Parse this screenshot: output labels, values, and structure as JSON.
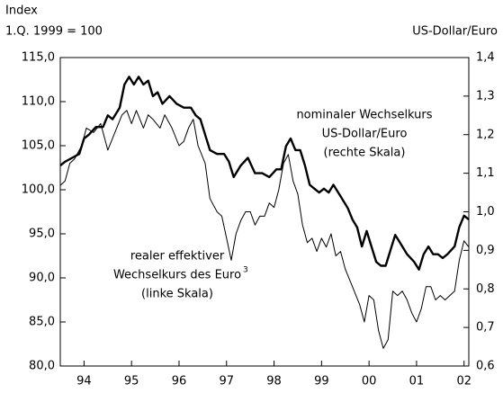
{
  "chart_data": {
    "type": "line",
    "ylabel": [
      "Index",
      "1.Q. 1999 = 100"
    ],
    "y2label": "US-Dollar/Euro",
    "xlim": [
      1994,
      2002.6
    ],
    "xticks": [
      {
        "value": 1994.5,
        "label": "94"
      },
      {
        "value": 1995.5,
        "label": "95"
      },
      {
        "value": 1996.5,
        "label": "96"
      },
      {
        "value": 1997.5,
        "label": "97"
      },
      {
        "value": 1998.5,
        "label": "98"
      },
      {
        "value": 1999.5,
        "label": "99"
      },
      {
        "value": 2000.5,
        "label": "00"
      },
      {
        "value": 2001.5,
        "label": "01"
      },
      {
        "value": 2002.5,
        "label": "02"
      }
    ],
    "ylim": [
      80,
      115
    ],
    "yticks": [
      {
        "value": 80,
        "label": "80,0"
      },
      {
        "value": 85,
        "label": "85,0"
      },
      {
        "value": 90,
        "label": "90,0"
      },
      {
        "value": 95,
        "label": "95,0"
      },
      {
        "value": 100,
        "label": "100,0"
      },
      {
        "value": 105,
        "label": "105,0"
      },
      {
        "value": 110,
        "label": "110,0"
      },
      {
        "value": 115,
        "label": "115,0"
      }
    ],
    "y2lim": [
      0.6,
      1.4
    ],
    "y2ticks": [
      {
        "value": 0.6,
        "label": "0,6"
      },
      {
        "value": 0.7,
        "label": "0,7"
      },
      {
        "value": 0.8,
        "label": "0,8"
      },
      {
        "value": 0.9,
        "label": "0,9"
      },
      {
        "value": 1.0,
        "label": "1,0"
      },
      {
        "value": 1.1,
        "label": "1,1"
      },
      {
        "value": 1.2,
        "label": "1,2"
      },
      {
        "value": 1.3,
        "label": "1,3"
      },
      {
        "value": 1.4,
        "label": "1,4"
      }
    ],
    "annotations": [
      {
        "lines": [
          "nominaler Wechselkurs",
          "US-Dollar/Euro",
          "(rechte Skala)"
        ]
      },
      {
        "lines": [
          "realer effektiver",
          "Wechselkurs des Euro",
          "(linke Skala)"
        ],
        "footnote": "3"
      }
    ],
    "series": [
      {
        "name": "nominaler Wechselkurs US-Dollar/Euro",
        "color": "#000",
        "width": 2.4,
        "axis": "y2",
        "x": [
          1994.0,
          1994.1,
          1994.25,
          1994.4,
          1994.5,
          1994.6,
          1994.75,
          1994.9,
          1995.0,
          1995.1,
          1995.25,
          1995.35,
          1995.45,
          1995.55,
          1995.65,
          1995.75,
          1995.85,
          1995.95,
          1996.05,
          1996.15,
          1996.3,
          1996.45,
          1996.6,
          1996.75,
          1996.85,
          1996.95,
          1997.05,
          1997.15,
          1997.3,
          1997.45,
          1997.55,
          1997.65,
          1997.8,
          1997.95,
          1998.1,
          1998.25,
          1998.4,
          1998.55,
          1998.65,
          1998.75,
          1998.85,
          1998.95,
          1999.05,
          1999.15,
          1999.25,
          1999.35,
          1999.45,
          1999.55,
          1999.65,
          1999.75,
          1999.9,
          2000.05,
          2000.15,
          2000.25,
          2000.35,
          2000.45,
          2000.55,
          2000.65,
          2000.75,
          2000.85,
          2000.95,
          2001.05,
          2001.15,
          2001.3,
          2001.45,
          2001.55,
          2001.65,
          2001.75,
          2001.85,
          2001.95,
          2002.05,
          2002.15,
          2002.3,
          2002.4,
          2002.5,
          2002.6
        ],
        "values": [
          1.12,
          1.13,
          1.14,
          1.15,
          1.19,
          1.2,
          1.22,
          1.22,
          1.25,
          1.24,
          1.27,
          1.33,
          1.35,
          1.33,
          1.35,
          1.33,
          1.34,
          1.3,
          1.31,
          1.28,
          1.3,
          1.28,
          1.27,
          1.27,
          1.25,
          1.24,
          1.2,
          1.16,
          1.15,
          1.15,
          1.13,
          1.09,
          1.12,
          1.14,
          1.1,
          1.1,
          1.09,
          1.11,
          1.11,
          1.17,
          1.19,
          1.16,
          1.16,
          1.12,
          1.07,
          1.06,
          1.05,
          1.06,
          1.05,
          1.07,
          1.04,
          1.01,
          0.98,
          0.96,
          0.91,
          0.95,
          0.91,
          0.87,
          0.86,
          0.86,
          0.9,
          0.94,
          0.92,
          0.89,
          0.87,
          0.85,
          0.89,
          0.91,
          0.89,
          0.89,
          0.88,
          0.89,
          0.91,
          0.96,
          0.99,
          0.98
        ]
      },
      {
        "name": "realer effektiver Wechselkurs des Euro",
        "color": "#000",
        "width": 1,
        "axis": "y",
        "x": [
          1994.0,
          1994.1,
          1994.2,
          1994.3,
          1994.45,
          1994.55,
          1994.7,
          1994.85,
          1995.0,
          1995.15,
          1995.3,
          1995.4,
          1995.5,
          1995.6,
          1995.75,
          1995.85,
          1995.95,
          1996.1,
          1996.2,
          1996.35,
          1996.5,
          1996.6,
          1996.7,
          1996.8,
          1996.9,
          1997.05,
          1997.15,
          1997.3,
          1997.4,
          1997.5,
          1997.6,
          1997.7,
          1997.8,
          1997.9,
          1998.0,
          1998.1,
          1998.2,
          1998.3,
          1998.4,
          1998.5,
          1998.6,
          1998.7,
          1998.8,
          1998.9,
          1999.0,
          1999.1,
          1999.2,
          1999.3,
          1999.4,
          1999.5,
          1999.6,
          1999.7,
          1999.8,
          1999.9,
          2000.0,
          2000.15,
          2000.3,
          2000.4,
          2000.5,
          2000.6,
          2000.7,
          2000.8,
          2000.9,
          2001.0,
          2001.1,
          2001.2,
          2001.3,
          2001.4,
          2001.5,
          2001.6,
          2001.7,
          2001.8,
          2001.9,
          2002.0,
          2002.1,
          2002.2,
          2002.3,
          2002.4,
          2002.5,
          2002.6
        ],
        "values": [
          100.5,
          101,
          103,
          103.5,
          105,
          107,
          106.5,
          107.5,
          104.5,
          106.5,
          108.5,
          109,
          107.5,
          109,
          107,
          108.5,
          108,
          107,
          108.5,
          107,
          105,
          105.5,
          107,
          108,
          105,
          103,
          99,
          97.5,
          97,
          94.5,
          92,
          95,
          96.5,
          97.5,
          97.5,
          96,
          97,
          97,
          98.5,
          98,
          100,
          103,
          104,
          101,
          99.5,
          96,
          94,
          94.5,
          93,
          94.5,
          93.5,
          95,
          92.5,
          93,
          91,
          89,
          87,
          85,
          88,
          87.5,
          84,
          82,
          83,
          88.5,
          88,
          88.5,
          87.5,
          86,
          85,
          86.5,
          89,
          89,
          87.5,
          88,
          87.5,
          88,
          88.5,
          92,
          94.2,
          93.5
        ]
      }
    ]
  }
}
